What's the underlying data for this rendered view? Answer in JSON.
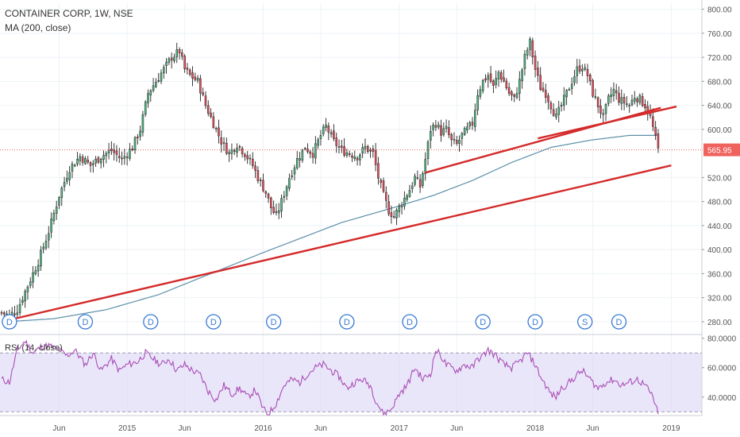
{
  "legend": {
    "title": "CONTAINER CORP, 1W, NSE",
    "ma": "MA (200, close)",
    "rsi": "RSI (14, close)"
  },
  "colors": {
    "up": "#53b987",
    "down": "#eb4d5c",
    "ma": "#5b8fa8",
    "trend": "#d42a2a",
    "rsi": "#a94fb5",
    "rsi_band": "#d9d2f5",
    "price_tag": "#f0625d"
  },
  "chart_data": [
    {
      "type": "candlestick",
      "title": "CONTAINER CORP, 1W, NSE",
      "ylim": [
        260,
        810
      ],
      "y_ticks": [
        "800.00",
        "760.00",
        "720.00",
        "680.00",
        "640.00",
        "600.00",
        "565.95",
        "520.00",
        "480.00",
        "440.00",
        "400.00",
        "360.00",
        "320.00",
        "280.00"
      ],
      "y_tick_values": [
        800,
        760,
        720,
        680,
        640,
        600,
        565.95,
        520,
        480,
        440,
        400,
        360,
        320,
        280
      ],
      "last_price": 565.95,
      "last_price_label": "565.95",
      "x_ticks": [
        "Jun",
        "2015",
        "Jun",
        "2016",
        "Jun",
        "2017",
        "Jun",
        "2018",
        "Jun",
        "2019"
      ],
      "x_tick_weeks": [
        22,
        48,
        70,
        100,
        122,
        152,
        174,
        204,
        226,
        256
      ],
      "weeks": 258,
      "close_anchors": [
        [
          0,
          295
        ],
        [
          3,
          290
        ],
        [
          6,
          300
        ],
        [
          10,
          340
        ],
        [
          14,
          380
        ],
        [
          18,
          430
        ],
        [
          22,
          490
        ],
        [
          26,
          535
        ],
        [
          30,
          555
        ],
        [
          34,
          540
        ],
        [
          38,
          555
        ],
        [
          42,
          565
        ],
        [
          46,
          550
        ],
        [
          50,
          570
        ],
        [
          53,
          600
        ],
        [
          56,
          660
        ],
        [
          59,
          680
        ],
        [
          62,
          700
        ],
        [
          65,
          720
        ],
        [
          68,
          730
        ],
        [
          70,
          700
        ],
        [
          72,
          690
        ],
        [
          75,
          680
        ],
        [
          78,
          640
        ],
        [
          81,
          610
        ],
        [
          84,
          580
        ],
        [
          87,
          560
        ],
        [
          90,
          575
        ],
        [
          93,
          560
        ],
        [
          96,
          540
        ],
        [
          98,
          520
        ],
        [
          101,
          495
        ],
        [
          103,
          470
        ],
        [
          105,
          455
        ],
        [
          107,
          480
        ],
        [
          110,
          520
        ],
        [
          113,
          550
        ],
        [
          116,
          570
        ],
        [
          119,
          560
        ],
        [
          122,
          590
        ],
        [
          124,
          605
        ],
        [
          127,
          580
        ],
        [
          130,
          565
        ],
        [
          133,
          560
        ],
        [
          136,
          555
        ],
        [
          139,
          570
        ],
        [
          142,
          560
        ],
        [
          144,
          520
        ],
        [
          146,
          490
        ],
        [
          148,
          465
        ],
        [
          150,
          455
        ],
        [
          152,
          470
        ],
        [
          154,
          485
        ],
        [
          156,
          500
        ],
        [
          158,
          520
        ],
        [
          160,
          505
        ],
        [
          162,
          550
        ],
        [
          164,
          600
        ],
        [
          166,
          610
        ],
        [
          168,
          595
        ],
        [
          170,
          600
        ],
        [
          172,
          580
        ],
        [
          174,
          575
        ],
        [
          176,
          590
        ],
        [
          178,
          600
        ],
        [
          180,
          610
        ],
        [
          182,
          660
        ],
        [
          184,
          680
        ],
        [
          186,
          690
        ],
        [
          188,
          670
        ],
        [
          190,
          695
        ],
        [
          192,
          680
        ],
        [
          194,
          660
        ],
        [
          196,
          650
        ],
        [
          198,
          680
        ],
        [
          200,
          720
        ],
        [
          202,
          745
        ],
        [
          204,
          700
        ],
        [
          206,
          670
        ],
        [
          208,
          660
        ],
        [
          210,
          640
        ],
        [
          212,
          620
        ],
        [
          214,
          640
        ],
        [
          216,
          660
        ],
        [
          218,
          680
        ],
        [
          220,
          700
        ],
        [
          222,
          705
        ],
        [
          224,
          690
        ],
        [
          226,
          660
        ],
        [
          228,
          640
        ],
        [
          230,
          620
        ],
        [
          232,
          650
        ],
        [
          234,
          665
        ],
        [
          236,
          650
        ],
        [
          238,
          645
        ],
        [
          240,
          640
        ],
        [
          242,
          655
        ],
        [
          244,
          650
        ],
        [
          246,
          640
        ],
        [
          248,
          620
        ],
        [
          250,
          585
        ],
        [
          251,
          566
        ]
      ],
      "ma_200": [
        [
          2,
          280
        ],
        [
          20,
          285
        ],
        [
          40,
          300
        ],
        [
          60,
          325
        ],
        [
          80,
          360
        ],
        [
          100,
          395
        ],
        [
          115,
          420
        ],
        [
          130,
          445
        ],
        [
          150,
          470
        ],
        [
          165,
          490
        ],
        [
          180,
          515
        ],
        [
          195,
          545
        ],
        [
          210,
          570
        ],
        [
          225,
          582
        ],
        [
          240,
          590
        ],
        [
          251,
          590
        ]
      ],
      "trendlines": [
        {
          "from": [
            2,
            282
          ],
          "to": [
            256,
            540
          ]
        },
        {
          "from": [
            162,
            528
          ],
          "to": [
            252,
            636
          ]
        },
        {
          "from": [
            205,
            585
          ],
          "to": [
            258,
            638
          ]
        }
      ],
      "dividend_markers": [
        "D",
        "D",
        "D",
        "D",
        "D",
        "D",
        "D",
        "D",
        "D",
        "S",
        "D"
      ],
      "dividend_weeks": [
        3,
        32,
        57,
        81,
        104,
        132,
        156,
        184,
        204,
        223,
        236
      ]
    },
    {
      "type": "line",
      "title": "RSI (14, close)",
      "ylim": [
        28,
        82
      ],
      "band": [
        30,
        70
      ],
      "y_ticks": [
        "80.0000",
        "60.0000",
        "40.0000"
      ],
      "y_tick_values": [
        80,
        60,
        40
      ],
      "anchors": [
        [
          0,
          52
        ],
        [
          3,
          50
        ],
        [
          6,
          72
        ],
        [
          9,
          78
        ],
        [
          12,
          70
        ],
        [
          15,
          74
        ],
        [
          18,
          75
        ],
        [
          22,
          72
        ],
        [
          25,
          68
        ],
        [
          28,
          72
        ],
        [
          32,
          62
        ],
        [
          35,
          70
        ],
        [
          38,
          58
        ],
        [
          42,
          66
        ],
        [
          45,
          58
        ],
        [
          48,
          62
        ],
        [
          52,
          64
        ],
        [
          55,
          70
        ],
        [
          58,
          66
        ],
        [
          61,
          62
        ],
        [
          64,
          66
        ],
        [
          67,
          58
        ],
        [
          70,
          62
        ],
        [
          73,
          58
        ],
        [
          76,
          55
        ],
        [
          79,
          44
        ],
        [
          82,
          38
        ],
        [
          85,
          48
        ],
        [
          88,
          42
        ],
        [
          91,
          46
        ],
        [
          94,
          40
        ],
        [
          97,
          45
        ],
        [
          100,
          32
        ],
        [
          102,
          28
        ],
        [
          105,
          36
        ],
        [
          108,
          48
        ],
        [
          111,
          52
        ],
        [
          114,
          50
        ],
        [
          117,
          56
        ],
        [
          120,
          60
        ],
        [
          123,
          62
        ],
        [
          126,
          58
        ],
        [
          129,
          54
        ],
        [
          132,
          46
        ],
        [
          135,
          50
        ],
        [
          138,
          52
        ],
        [
          141,
          48
        ],
        [
          143,
          38
        ],
        [
          146,
          28
        ],
        [
          149,
          32
        ],
        [
          152,
          42
        ],
        [
          155,
          48
        ],
        [
          158,
          60
        ],
        [
          161,
          52
        ],
        [
          164,
          56
        ],
        [
          166,
          72
        ],
        [
          168,
          68
        ],
        [
          170,
          62
        ],
        [
          172,
          60
        ],
        [
          174,
          58
        ],
        [
          177,
          62
        ],
        [
          180,
          60
        ],
        [
          182,
          66
        ],
        [
          184,
          68
        ],
        [
          186,
          72
        ],
        [
          189,
          68
        ],
        [
          192,
          62
        ],
        [
          195,
          60
        ],
        [
          198,
          64
        ],
        [
          201,
          70
        ],
        [
          204,
          62
        ],
        [
          206,
          54
        ],
        [
          208,
          48
        ],
        [
          210,
          42
        ],
        [
          212,
          40
        ],
        [
          214,
          46
        ],
        [
          217,
          50
        ],
        [
          220,
          55
        ],
        [
          222,
          58
        ],
        [
          225,
          52
        ],
        [
          228,
          46
        ],
        [
          231,
          50
        ],
        [
          234,
          52
        ],
        [
          237,
          48
        ],
        [
          240,
          50
        ],
        [
          243,
          52
        ],
        [
          246,
          48
        ],
        [
          249,
          40
        ],
        [
          251,
          28
        ]
      ]
    }
  ]
}
